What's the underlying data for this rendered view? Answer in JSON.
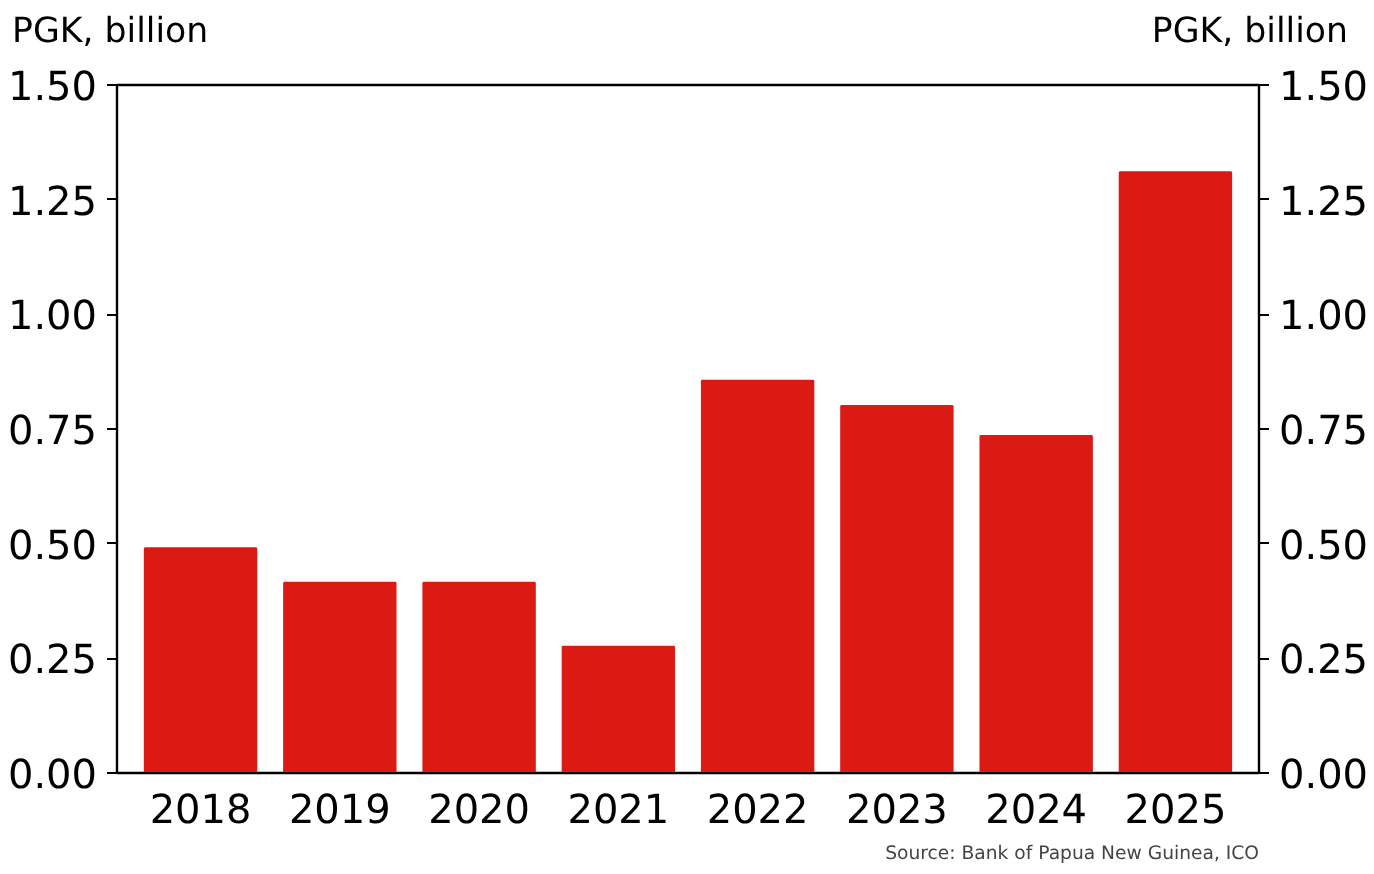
{
  "chart_data": {
    "type": "bar",
    "ylabel": "PGK, billion",
    "y2label": "PGK, billion",
    "categories": [
      "2018",
      "2019",
      "2020",
      "2021",
      "2022",
      "2023",
      "2024",
      "2025"
    ],
    "values": [
      0.49,
      0.415,
      0.415,
      0.275,
      0.855,
      0.8,
      0.735,
      1.31
    ],
    "color": "#dc1a14",
    "ylim": [
      0,
      1.5
    ],
    "yticks": [
      {
        "value": 0,
        "label": "0.00"
      },
      {
        "value": 0.25,
        "label": "0.25"
      },
      {
        "value": 0.5,
        "label": "0.50"
      },
      {
        "value": 0.75,
        "label": "0.75"
      },
      {
        "value": 1,
        "label": "1.00"
      },
      {
        "value": 1.25,
        "label": "1.25"
      },
      {
        "value": 1.5,
        "label": "1.50"
      }
    ],
    "y2lim": [
      0,
      1.5
    ],
    "y2ticks": [
      {
        "value": 0,
        "label": "0.00"
      },
      {
        "value": 0.25,
        "label": "0.25"
      },
      {
        "value": 0.5,
        "label": "0.50"
      },
      {
        "value": 0.75,
        "label": "0.75"
      },
      {
        "value": 1,
        "label": "1.00"
      },
      {
        "value": 1.25,
        "label": "1.25"
      },
      {
        "value": 1.5,
        "label": "1.50"
      }
    ],
    "grid": false,
    "annotations": [
      "Source: Bank of Papua New Guinea, ICO"
    ]
  }
}
